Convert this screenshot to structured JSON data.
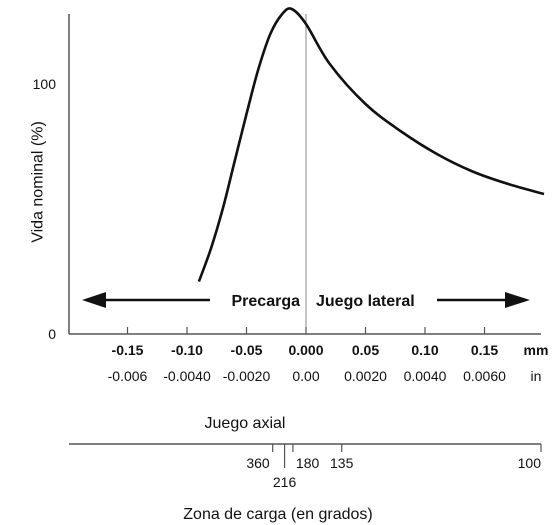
{
  "chart_data": {
    "type": "line",
    "ylabel": "Vida nominal (%)",
    "yticks": [
      "100",
      "0"
    ],
    "xaxis_primary": {
      "title": "Juego axial",
      "mm_unit": "mm",
      "in_unit": "in",
      "ticks": [
        {
          "mm": "-0.15",
          "in": "-0.006",
          "value_mm": -0.15
        },
        {
          "mm": "-0.10",
          "in": "-0.0040",
          "value_mm": -0.1
        },
        {
          "mm": "-0.05",
          "in": "-0.0020",
          "value_mm": -0.05
        },
        {
          "mm": "0.000",
          "in": "0.00",
          "value_mm": 0.0
        },
        {
          "mm": "0.05",
          "in": "0.0020",
          "value_mm": 0.05
        },
        {
          "mm": "0.10",
          "in": "0.0040",
          "value_mm": 0.1
        },
        {
          "mm": "0.15",
          "in": "0.0060",
          "value_mm": 0.15
        }
      ]
    },
    "xaxis_secondary": {
      "title": "Zona de carga (en grados)",
      "ticks": [
        {
          "label": "360",
          "value_mm": -0.028
        },
        {
          "label": "216",
          "value_mm": -0.018
        },
        {
          "label": "180",
          "value_mm": -0.011
        },
        {
          "label": "135",
          "value_mm": 0.03
        },
        {
          "label": "100",
          "value_mm": 0.2
        }
      ]
    },
    "regions": {
      "left_label": "Precarga",
      "right_label": "Juego lateral"
    },
    "series": [
      {
        "values": [
          {
            "x": -0.09,
            "y": 21
          },
          {
            "x": -0.08,
            "y": 34
          },
          {
            "x": -0.07,
            "y": 50
          },
          {
            "x": -0.06,
            "y": 69
          },
          {
            "x": -0.05,
            "y": 88
          },
          {
            "x": -0.04,
            "y": 106
          },
          {
            "x": -0.03,
            "y": 120
          },
          {
            "x": -0.02,
            "y": 128
          },
          {
            "x": -0.012,
            "y": 130
          },
          {
            "x": 0.0,
            "y": 124
          },
          {
            "x": 0.02,
            "y": 108
          },
          {
            "x": 0.05,
            "y": 92
          },
          {
            "x": 0.08,
            "y": 81
          },
          {
            "x": 0.11,
            "y": 72
          },
          {
            "x": 0.14,
            "y": 65
          },
          {
            "x": 0.17,
            "y": 60
          },
          {
            "x": 0.2,
            "y": 56
          }
        ]
      }
    ],
    "ylim": [
      0,
      135
    ],
    "xlim": [
      -0.2,
      0.2
    ],
    "colors": {
      "line": "#111111",
      "axis": "#555555"
    }
  }
}
